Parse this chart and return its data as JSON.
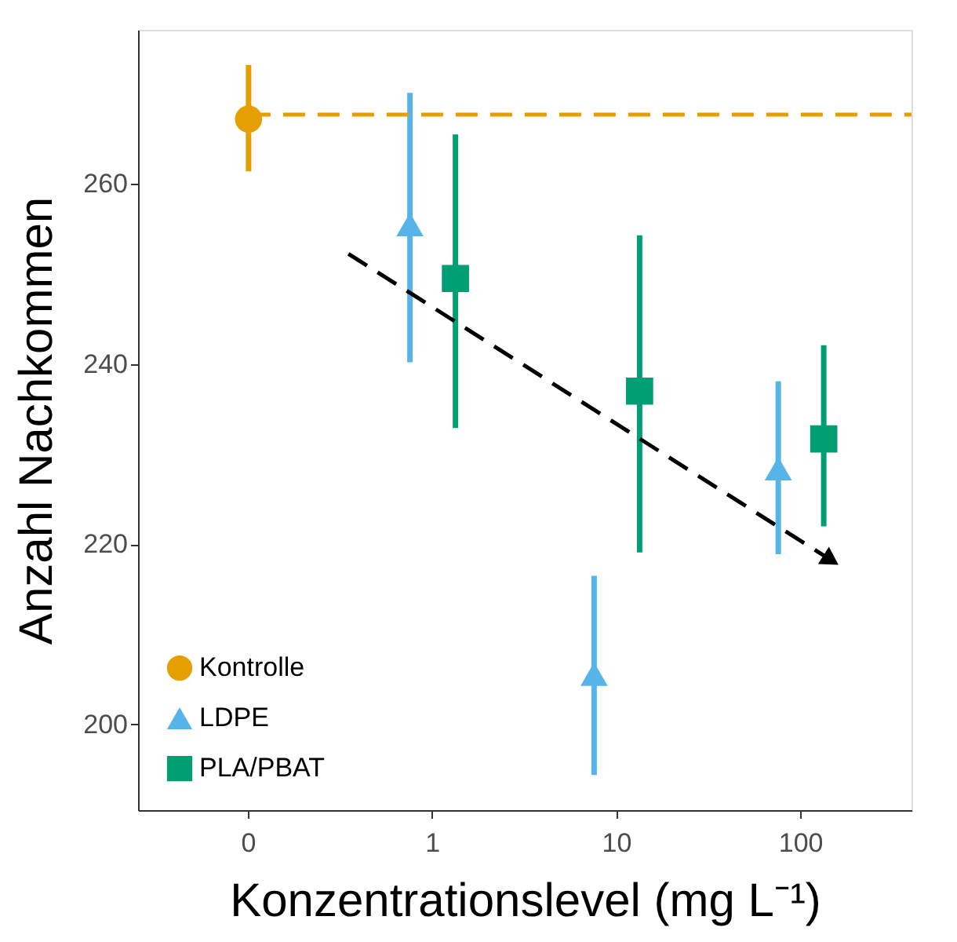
{
  "chart_data": {
    "type": "scatter",
    "xlabel": "Konzentrationslevel (mg L⁻¹)",
    "ylabel": "Anzahl Nachkommen",
    "categories": [
      "0",
      "1",
      "10",
      "100"
    ],
    "ylim": [
      190.5,
      277.1
    ],
    "yticks": [
      200,
      220,
      240,
      260
    ],
    "grid": false,
    "legend": "bottom left",
    "series": [
      {
        "name": "Kontrolle",
        "marker": "circle",
        "color": "#e69f00",
        "values": [
          267.2,
          null,
          null,
          null
        ],
        "errors": [
          [
            261.4,
            273.2
          ],
          null,
          null,
          null
        ]
      },
      {
        "name": "LDPE",
        "marker": "triangle",
        "color": "#56b4e9",
        "values": [
          null,
          255.5,
          205.6,
          228.4
        ],
        "errors": [
          null,
          [
            240.2,
            270.1
          ],
          [
            194.4,
            216.5
          ],
          [
            218.9,
            238.1
          ]
        ]
      },
      {
        "name": "PLA/PBAT",
        "marker": "square",
        "color": "#009e73",
        "values": [
          null,
          249.5,
          237.0,
          231.7
        ],
        "errors": [
          null,
          [
            232.9,
            265.5
          ],
          [
            219.1,
            254.3
          ],
          [
            222.0,
            242.1
          ]
        ]
      }
    ],
    "ref_lines": [
      {
        "axis": "y",
        "value": 267.7,
        "color": "#e69f00",
        "line_style": "dashed"
      }
    ]
  }
}
